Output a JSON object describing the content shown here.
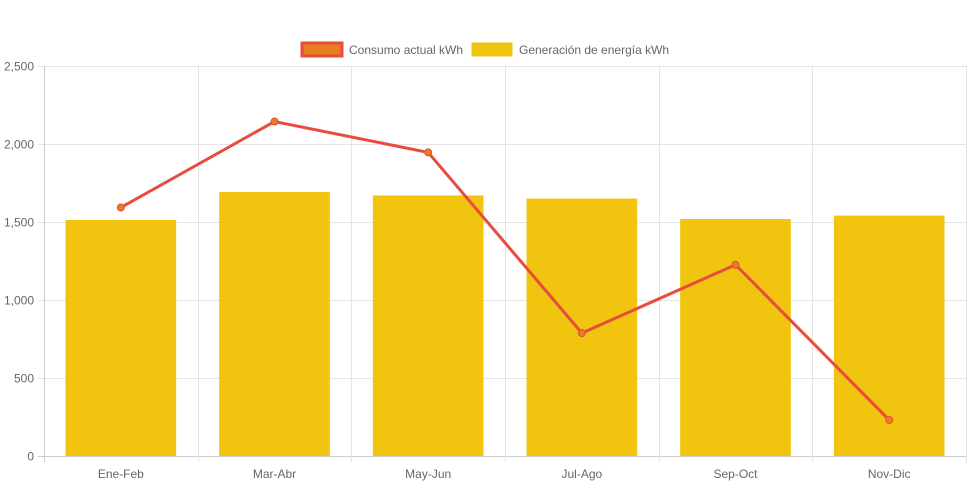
{
  "chart_data": {
    "type": "bar",
    "title": "",
    "xlabel": "",
    "ylabel": "",
    "categories": [
      "Ene-Feb",
      "Mar-Abr",
      "May-Jun",
      "Jul-Ago",
      "Sep-Oct",
      "Nov-Dic"
    ],
    "ylim": [
      0,
      2500
    ],
    "yticks": [
      0,
      500,
      1000,
      1500,
      2000,
      2500
    ],
    "ytick_labels": [
      "0",
      "500",
      "1,000",
      "1,500",
      "2,000",
      "2,500"
    ],
    "grid": true,
    "legend_position": "top-center",
    "series": [
      {
        "name": "Consumo actual kWh",
        "type": "line",
        "color": "#e74c3c",
        "point_color": "#e67e22",
        "values": [
          1593,
          2144,
          1946,
          788,
          1226,
          231
        ]
      },
      {
        "name": "Generación de energía kWh",
        "type": "bar",
        "color": "#f1c40f",
        "values": [
          1513,
          1692,
          1670,
          1650,
          1519,
          1541
        ]
      }
    ]
  }
}
